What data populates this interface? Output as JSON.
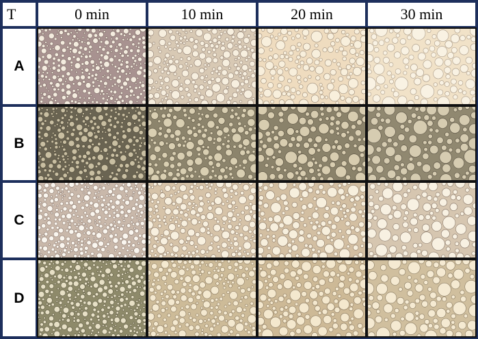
{
  "corner_label": "T",
  "columns": [
    "0 min",
    "10 min",
    "20 min",
    "30 min"
  ],
  "rows": [
    {
      "label": "A",
      "panels": [
        {
          "bg": "#e6d9cc",
          "bubble": "#f4ecdf",
          "edge": "#7b6a64",
          "tint": "#a89290"
        },
        {
          "bg": "#efe4d2",
          "bubble": "#f7efdf",
          "edge": "#8d7c70",
          "tint": "#d8c9b4"
        },
        {
          "bg": "#f4e8d2",
          "bubble": "#f8efdc",
          "edge": "#9a8a78",
          "tint": "#efdcbf"
        },
        {
          "bg": "#f6ecd9",
          "bubble": "#f9f2e3",
          "edge": "#a99a88",
          "tint": "#f1e2c8"
        }
      ]
    },
    {
      "label": "B",
      "panels": [
        {
          "bg": "#8a8068",
          "bubble": "#c9bfa2",
          "edge": "#4e4838",
          "tint": "#6a6452"
        },
        {
          "bg": "#a59b80",
          "bubble": "#d9cfb2",
          "edge": "#5a5240",
          "tint": "#8c846c"
        },
        {
          "bg": "#a49980",
          "bubble": "#d8cdb0",
          "edge": "#564e3e",
          "tint": "#8a826a"
        },
        {
          "bg": "#a69c84",
          "bubble": "#d6ccb1",
          "edge": "#5a5244",
          "tint": "#908870"
        }
      ]
    },
    {
      "label": "C",
      "panels": [
        {
          "bg": "#eadfd2",
          "bubble": "#faf6ef",
          "edge": "#8c7a70",
          "tint": "#c9b8aa"
        },
        {
          "bg": "#ecdfc9",
          "bubble": "#f8f0df",
          "edge": "#8a7868",
          "tint": "#d6c3a8"
        },
        {
          "bg": "#eadcc4",
          "bubble": "#f7efdd",
          "edge": "#8a7866",
          "tint": "#d3bfa2"
        },
        {
          "bg": "#ecdfcb",
          "bubble": "#f8f1e2",
          "edge": "#8a7a6c",
          "tint": "#d6c6b0"
        }
      ]
    },
    {
      "label": "D",
      "panels": [
        {
          "bg": "#b5ae8e",
          "bubble": "#e7e0c6",
          "edge": "#5e5a44",
          "tint": "#8e8a6a"
        },
        {
          "bg": "#e6d7b8",
          "bubble": "#f4e9d0",
          "edge": "#8a7a62",
          "tint": "#cdbb98"
        },
        {
          "bg": "#e6d6b6",
          "bubble": "#f4e8ce",
          "edge": "#887860",
          "tint": "#cdb996"
        },
        {
          "bg": "#e8dabc",
          "bubble": "#f5ead2",
          "edge": "#8a7c64",
          "tint": "#d0bf9e"
        }
      ]
    }
  ]
}
